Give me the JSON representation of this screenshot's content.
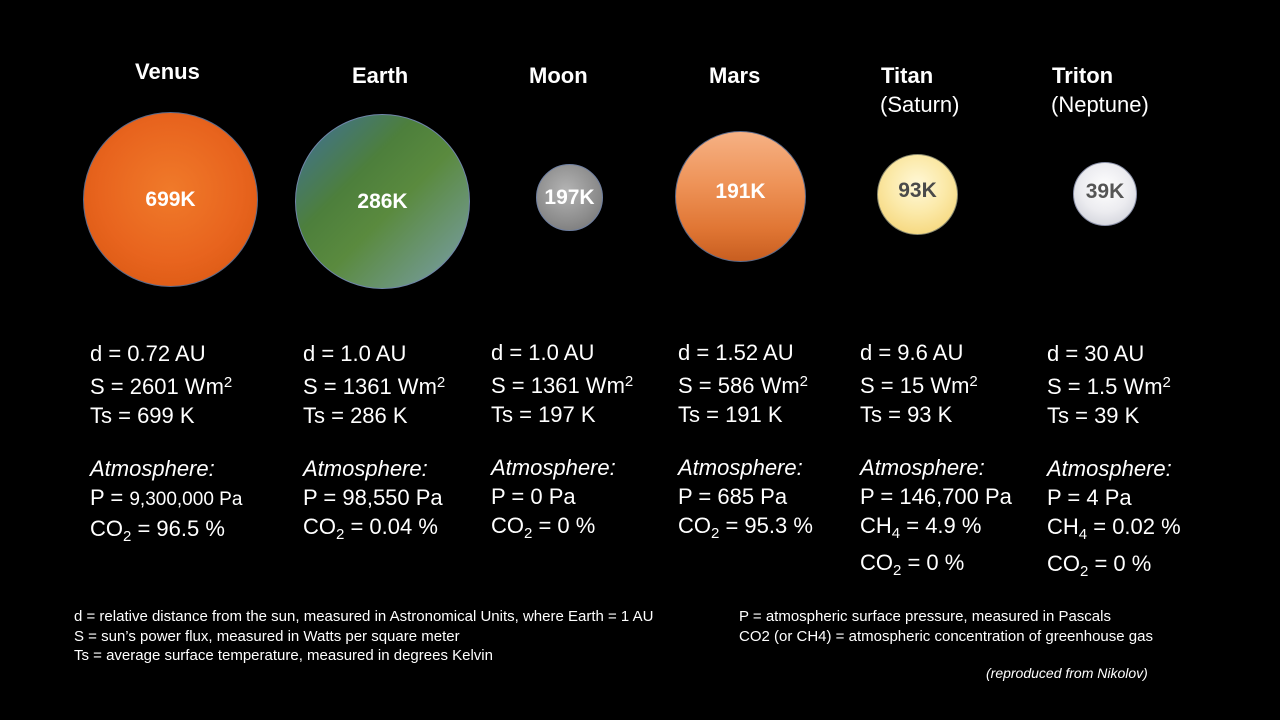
{
  "bodies": [
    {
      "name": "Venus",
      "sub": "",
      "temp_label": "699K",
      "d": "d = 0.72 AU",
      "s": "S = 2601 Wm",
      "s_exp": "2",
      "ts": "Ts = 699 K",
      "atm_title": "Atmosphere:",
      "p_prefix": "P = ",
      "p_value": "9,300,000 Pa",
      "gas1_pre": "CO",
      "gas1_sub": "2",
      "gas1_post": " = 96.5 %",
      "gas2_pre": "",
      "gas2_sub": "",
      "gas2_post": "",
      "color": "#e8641e"
    },
    {
      "name": "Earth",
      "sub": "",
      "temp_label": "286K",
      "d": "d = 1.0 AU",
      "s": "S = 1361 Wm",
      "s_exp": "2",
      "ts": "Ts = 286 K",
      "atm_title": "Atmosphere:",
      "p_prefix": "P = ",
      "p_value": "98,550 Pa",
      "gas1_pre": "CO",
      "gas1_sub": "2",
      "gas1_post": " = 0.04 %",
      "gas2_pre": "",
      "gas2_sub": "",
      "gas2_post": "",
      "color": "#4f7f3a"
    },
    {
      "name": "Moon",
      "sub": "",
      "temp_label": "197K",
      "d": "d = 1.0 AU",
      "s": "S = 1361 Wm",
      "s_exp": "2",
      "ts": "Ts = 197 K",
      "atm_title": "Atmosphere:",
      "p_prefix": "P = ",
      "p_value": "0 Pa",
      "gas1_pre": "CO",
      "gas1_sub": "2",
      "gas1_post": " = 0 %",
      "gas2_pre": "",
      "gas2_sub": "",
      "gas2_post": "",
      "color": "#8c8c8c"
    },
    {
      "name": "Mars",
      "sub": "",
      "temp_label": "191K",
      "d": "d = 1.52 AU",
      "s": "S = 586 Wm",
      "s_exp": "2",
      "ts": "Ts = 191 K",
      "atm_title": "Atmosphere:",
      "p_prefix": "P = ",
      "p_value": "685 Pa",
      "gas1_pre": "CO",
      "gas1_sub": "2",
      "gas1_post": " = 95.3 %",
      "gas2_pre": "",
      "gas2_sub": "",
      "gas2_post": "",
      "color": "#ec8a4e"
    },
    {
      "name": "Titan",
      "sub": "(Saturn)",
      "temp_label": "93K",
      "d": "d = 9.6 AU",
      "s": "S = 15 Wm",
      "s_exp": "2",
      "ts": "Ts = 93 K",
      "atm_title": "Atmosphere:",
      "p_prefix": "P = ",
      "p_value": "146,700 Pa",
      "gas1_pre": "CH",
      "gas1_sub": "4",
      "gas1_post": " = 4.9 %",
      "gas2_pre": "CO",
      "gas2_sub": "2",
      "gas2_post": " = 0 %",
      "color": "#f6dc86"
    },
    {
      "name": "Triton",
      "sub": "(Neptune)",
      "temp_label": "39K",
      "d": "d = 30 AU",
      "s": "S = 1.5 Wm",
      "s_exp": "2",
      "ts": "Ts = 39 K",
      "atm_title": "Atmosphere:",
      "p_prefix": "P = ",
      "p_value": "4 Pa",
      "gas1_pre": "CH",
      "gas1_sub": "4",
      "gas1_post": " = 0.02 %",
      "gas2_pre": "CO",
      "gas2_sub": "2",
      "gas2_post": " = 0 %",
      "color": "#dcdde3"
    }
  ],
  "legend_left": [
    "d = relative distance from the sun, measured in Astronomical Units, where Earth = 1 AU",
    "S = sun’s power flux, measured in Watts per square meter",
    "Ts = average surface temperature, measured in degrees Kelvin"
  ],
  "legend_right": [
    "P = atmospheric surface pressure, measured in Pascals",
    "CO2 (or CH4) = atmospheric concentration of greenhouse gas"
  ],
  "credit": "(reproduced from Nikolov)"
}
